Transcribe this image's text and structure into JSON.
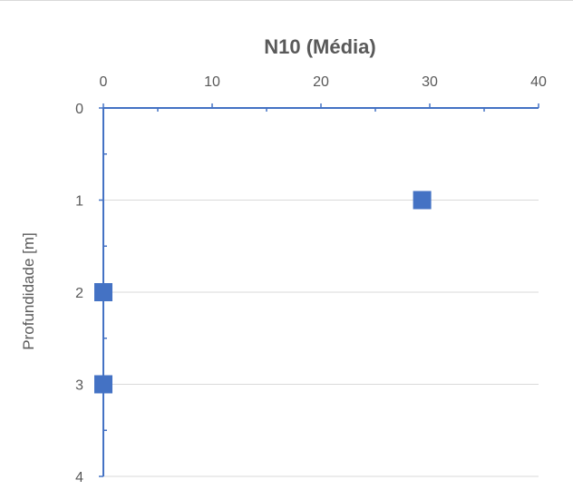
{
  "chart_data": {
    "type": "scatter",
    "title": "N10 (Média)",
    "xlabel": "",
    "ylabel": "Profundidade [m]",
    "x_axis_position": "top",
    "y_axis_reversed": true,
    "xlim": [
      0,
      40
    ],
    "ylim": [
      0,
      4
    ],
    "x_ticks": [
      "0",
      "10",
      "20",
      "30",
      "40"
    ],
    "y_ticks": [
      "0",
      "1",
      "2",
      "3",
      "4"
    ],
    "grid": "horizontal",
    "marker": "square",
    "marker_color": "#4472c4",
    "axis_color": "#4472c4",
    "points": [
      {
        "x": 29.3,
        "y": 1
      },
      {
        "x": 0,
        "y": 2
      },
      {
        "x": 0,
        "y": 3
      }
    ]
  }
}
